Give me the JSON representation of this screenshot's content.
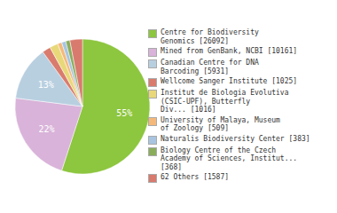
{
  "chart_data": {
    "type": "pie",
    "categories": [
      "Centre for Biodiversity\nGenomics [26092]",
      "Mined from GenBank, NCBI [10161]",
      "Canadian Centre for DNA\nBarcoding [5931]",
      "Wellcome Sanger Institute [1025]",
      "Institut de Biologia Evolutiva\n(CSIC-UPF), Butterfly\nDiv... [1016]",
      "University of Malaya, Museum\nof Zoology [509]",
      "Naturalis Biodiversity Center [383]",
      "Biology Centre of the Czech\nAcademy of Sciences, Institut...\n[368]",
      "62 Others [1587]"
    ],
    "values": [
      55,
      22,
      13,
      2,
      2,
      1,
      1,
      1,
      3
    ],
    "colors": [
      "#8dc63f",
      "#d9b3d9",
      "#b8cfe0",
      "#d97c6e",
      "#e8d87a",
      "#f4b97a",
      "#a8c4e0",
      "#8aad5c",
      "#d97a6e"
    ],
    "data_labels": true,
    "value_labels": [
      "55%",
      "22%",
      "13%",
      null,
      null,
      null,
      null,
      null,
      null
    ],
    "legend": "right"
  }
}
